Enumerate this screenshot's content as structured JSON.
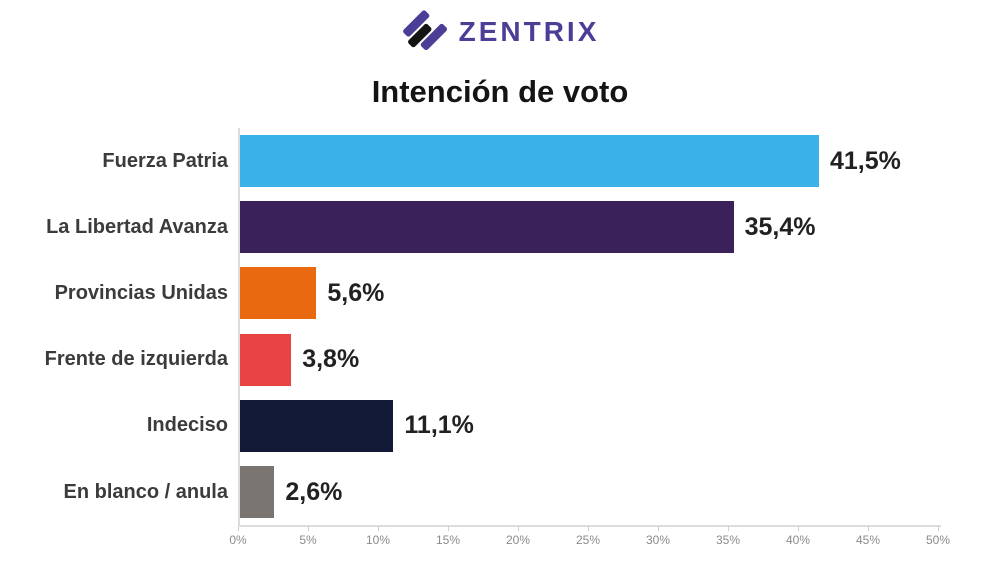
{
  "brand": {
    "name": "ZENTRIX",
    "color": "#4b3e96",
    "icon": "diagonal-stripes-logo",
    "icon_colors": {
      "purple": "#4b3e96",
      "black": "#141414"
    }
  },
  "title": "Intención de voto",
  "chart_data": {
    "type": "bar",
    "orientation": "horizontal",
    "title": "Intención de voto",
    "categories": [
      "Fuerza Patria",
      "La Libertad Avanza",
      "Provincias Unidas",
      "Frente de izquierda",
      "Indeciso",
      "En blanco / anula"
    ],
    "values": [
      41.5,
      35.4,
      5.6,
      3.8,
      11.1,
      2.6
    ],
    "value_labels": [
      "41,5%",
      "35,4%",
      "5,6%",
      "3,8%",
      "11,1%",
      "2,6%"
    ],
    "bar_colors": [
      "#3ab2e8",
      "#3b2159",
      "#e8690f",
      "#e84444",
      "#121a38",
      "#7b7572"
    ],
    "xlabel": "",
    "ylabel": "",
    "xlim": [
      0,
      50
    ],
    "xtick_step": 5,
    "xticks": [
      "0%",
      "5%",
      "10%",
      "15%",
      "20%",
      "25%",
      "30%",
      "35%",
      "40%",
      "45%",
      "50%"
    ],
    "grid": false,
    "legend": null
  }
}
